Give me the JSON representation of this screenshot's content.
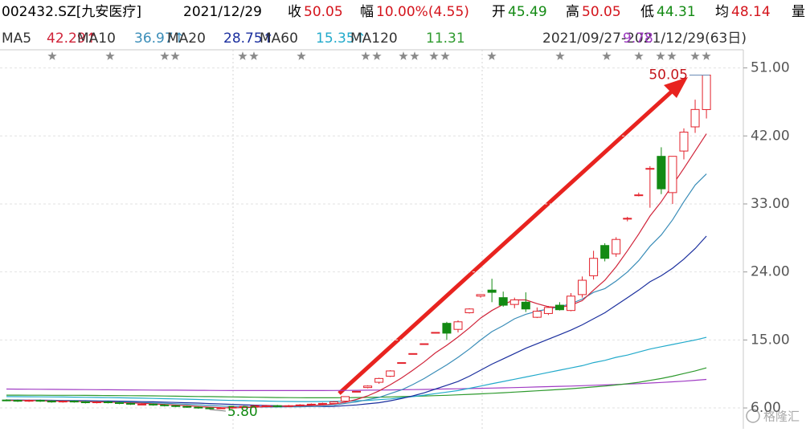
{
  "header": {
    "symbol": "002432.SZ[九安医疗]",
    "date": "2021/12/29",
    "fields": [
      {
        "label": "收",
        "value": "50.05",
        "color": "#d4141c"
      },
      {
        "label": "幅",
        "value": "10.00%(4.55)",
        "color": "#d4141c"
      },
      {
        "label": "开",
        "value": "45.49",
        "color": "#138a13"
      },
      {
        "label": "高",
        "value": "50.05",
        "color": "#d4141c"
      },
      {
        "label": "低",
        "value": "44.31",
        "color": "#138a13"
      },
      {
        "label": "均",
        "value": "48.14",
        "color": "#d4141c"
      }
    ],
    "volume_label": "量",
    "range": "2021/09/27-2021/12/29(63日)"
  },
  "watermark": "格隆汇",
  "chart_data": {
    "type": "candlestick",
    "categories": [
      null,
      null,
      null,
      null,
      null,
      null,
      null,
      null,
      null,
      null,
      null,
      null,
      null,
      null,
      null,
      null,
      null,
      null,
      null,
      null,
      null,
      null,
      null,
      null,
      null,
      null,
      null,
      null,
      null,
      null,
      null,
      null,
      null,
      null,
      null,
      null,
      null,
      null,
      null,
      null,
      null,
      null,
      null,
      null,
      null,
      null,
      null,
      null,
      null,
      null,
      null,
      null,
      null,
      null,
      null,
      null,
      null,
      null,
      null,
      null,
      null,
      null,
      null
    ],
    "open": [
      7.05,
      7.0,
      6.9,
      7.0,
      6.9,
      6.8,
      6.9,
      6.8,
      6.7,
      6.8,
      6.7,
      6.6,
      6.5,
      6.5,
      6.4,
      6.3,
      6.2,
      6.1,
      6.0,
      5.9,
      6.0,
      6.1,
      6.2,
      6.3,
      6.3,
      6.2,
      6.3,
      6.4,
      6.5,
      6.6,
      6.9,
      8.2,
      8.7,
      9.4,
      10.2,
      12.0,
      13.2,
      14.5,
      16.0,
      17.2,
      16.4,
      18.6,
      20.8,
      21.6,
      20.6,
      19.7,
      20.0,
      18.0,
      18.5,
      19.6,
      18.9,
      21.0,
      23.5,
      27.5,
      26.4,
      31.0,
      34.2,
      37.7,
      39.3,
      34.5,
      40.0,
      43.2,
      45.49
    ],
    "high": [
      7.15,
      7.1,
      7.1,
      7.1,
      7.0,
      7.0,
      7.0,
      6.9,
      6.9,
      6.9,
      6.8,
      6.7,
      6.6,
      6.6,
      6.5,
      6.4,
      6.3,
      6.2,
      6.1,
      6.1,
      6.2,
      6.3,
      6.4,
      6.4,
      6.4,
      6.4,
      6.5,
      6.6,
      6.7,
      6.9,
      7.5,
      8.2,
      9.0,
      10.0,
      11.0,
      12.0,
      13.2,
      14.5,
      16.0,
      17.4,
      17.6,
      19.2,
      21.0,
      23.1,
      21.4,
      20.6,
      21.3,
      19.3,
      19.5,
      20.0,
      21.2,
      23.4,
      26.8,
      27.8,
      28.6,
      31.3,
      34.5,
      38.0,
      40.5,
      39.3,
      43.0,
      46.8,
      50.05
    ],
    "low": [
      6.9,
      6.8,
      6.8,
      6.8,
      6.7,
      6.7,
      6.7,
      6.6,
      6.6,
      6.6,
      6.5,
      6.4,
      6.4,
      6.3,
      6.2,
      6.1,
      6.0,
      5.9,
      5.8,
      5.85,
      5.9,
      6.0,
      6.1,
      6.2,
      6.1,
      6.1,
      6.2,
      6.3,
      6.4,
      6.5,
      6.8,
      8.2,
      8.6,
      9.2,
      10.1,
      12.0,
      13.2,
      14.5,
      15.9,
      15.0,
      16.0,
      18.5,
      20.6,
      20.0,
      19.4,
      19.2,
      18.7,
      17.9,
      18.3,
      18.9,
      18.8,
      20.6,
      23.0,
      25.4,
      26.0,
      30.7,
      34.0,
      32.5,
      34.3,
      33.0,
      38.9,
      42.4,
      44.31
    ],
    "close": [
      7.0,
      6.9,
      7.0,
      6.9,
      6.8,
      6.9,
      6.8,
      6.7,
      6.8,
      6.7,
      6.6,
      6.5,
      6.5,
      6.4,
      6.3,
      6.2,
      6.1,
      6.0,
      5.9,
      6.0,
      6.1,
      6.2,
      6.3,
      6.3,
      6.2,
      6.3,
      6.4,
      6.5,
      6.6,
      6.8,
      7.5,
      8.2,
      8.9,
      9.9,
      10.9,
      12.0,
      13.2,
      14.5,
      16.0,
      15.9,
      17.4,
      19.1,
      21.0,
      21.3,
      19.6,
      20.3,
      19.1,
      18.8,
      19.3,
      19.0,
      20.8,
      22.9,
      25.8,
      25.8,
      28.3,
      31.1,
      34.2,
      37.7,
      35.0,
      39.3,
      42.5,
      45.5,
      50.05
    ],
    "up_color": "#e3212b",
    "down_color": "#138a13",
    "series": [
      {
        "name": "MA5",
        "legend_value": "42.29↑",
        "color": "#d0243a",
        "values": [
          7.0,
          7.0,
          7.0,
          6.95,
          6.92,
          6.9,
          6.88,
          6.82,
          6.8,
          6.78,
          6.72,
          6.66,
          6.62,
          6.54,
          6.46,
          6.38,
          6.3,
          6.2,
          6.1,
          6.04,
          6.02,
          6.04,
          6.1,
          6.18,
          6.22,
          6.26,
          6.3,
          6.34,
          6.4,
          6.52,
          6.76,
          7.12,
          7.6,
          8.26,
          9.08,
          9.98,
          11.0,
          12.1,
          13.3,
          14.3,
          15.4,
          16.6,
          17.9,
          18.9,
          19.7,
          20.3,
          20.3,
          19.8,
          19.4,
          19.3,
          19.6,
          20.2,
          21.6,
          22.9,
          24.7,
          26.8,
          29.0,
          31.4,
          33.3,
          35.5,
          37.7,
          40.0,
          42.29
        ]
      },
      {
        "name": "MA10",
        "legend_value": "36.97↑",
        "color": "#3a8db8",
        "values": [
          7.0,
          7.0,
          7.0,
          7.0,
          7.0,
          6.95,
          6.93,
          6.9,
          6.87,
          6.84,
          6.8,
          6.76,
          6.72,
          6.67,
          6.62,
          6.56,
          6.48,
          6.41,
          6.33,
          6.25,
          6.2,
          6.16,
          6.13,
          6.12,
          6.12,
          6.14,
          6.16,
          6.2,
          6.25,
          6.35,
          6.6,
          6.8,
          7.1,
          7.4,
          7.9,
          8.4,
          9.1,
          9.9,
          10.8,
          11.7,
          12.7,
          13.8,
          15.0,
          16.1,
          16.9,
          17.8,
          18.4,
          18.8,
          19.1,
          19.4,
          19.8,
          20.4,
          21.3,
          21.8,
          22.8,
          24.0,
          25.5,
          27.4,
          28.9,
          30.9,
          33.3,
          35.5,
          36.97
        ]
      },
      {
        "name": "MA20",
        "legend_value": "28.75↑",
        "color": "#1b2f9e",
        "values": [
          7.05,
          7.05,
          7.04,
          7.03,
          7.02,
          7.0,
          6.98,
          6.96,
          6.94,
          6.92,
          6.9,
          6.87,
          6.84,
          6.81,
          6.77,
          6.73,
          6.69,
          6.64,
          6.58,
          6.53,
          6.47,
          6.42,
          6.37,
          6.33,
          6.29,
          6.25,
          6.22,
          6.2,
          6.19,
          6.2,
          6.3,
          6.4,
          6.55,
          6.7,
          6.95,
          7.25,
          7.6,
          8.0,
          8.5,
          9.0,
          9.5,
          10.2,
          11.0,
          11.8,
          12.5,
          13.2,
          13.9,
          14.5,
          15.1,
          15.7,
          16.3,
          17.0,
          17.8,
          18.6,
          19.6,
          20.6,
          21.6,
          22.7,
          23.5,
          24.5,
          25.7,
          27.1,
          28.75
        ]
      },
      {
        "name": "MA60",
        "legend_value": "15.35↑",
        "color": "#22aacb",
        "values": [
          7.5,
          7.49,
          7.48,
          7.47,
          7.46,
          7.45,
          7.43,
          7.41,
          7.39,
          7.37,
          7.35,
          7.32,
          7.29,
          7.26,
          7.23,
          7.2,
          7.16,
          7.12,
          7.08,
          7.04,
          7.0,
          6.97,
          6.94,
          6.91,
          6.88,
          6.86,
          6.85,
          6.85,
          6.86,
          6.88,
          6.9,
          6.95,
          7.0,
          7.1,
          7.2,
          7.35,
          7.5,
          7.7,
          7.9,
          8.1,
          8.3,
          8.6,
          8.9,
          9.2,
          9.5,
          9.8,
          10.1,
          10.4,
          10.7,
          11.0,
          11.3,
          11.6,
          12.0,
          12.3,
          12.7,
          13.0,
          13.4,
          13.8,
          14.1,
          14.4,
          14.7,
          15.0,
          15.35
        ]
      },
      {
        "name": "MA120",
        "legend_value": "11.31",
        "color": "#2e9a2e",
        "values": [
          7.7,
          7.7,
          7.69,
          7.69,
          7.68,
          7.68,
          7.67,
          7.66,
          7.65,
          7.64,
          7.63,
          7.62,
          7.61,
          7.6,
          7.58,
          7.56,
          7.54,
          7.52,
          7.5,
          7.48,
          7.46,
          7.44,
          7.42,
          7.4,
          7.38,
          7.37,
          7.36,
          7.35,
          7.35,
          7.35,
          7.36,
          7.38,
          7.4,
          7.43,
          7.46,
          7.5,
          7.54,
          7.58,
          7.63,
          7.68,
          7.74,
          7.8,
          7.87,
          7.94,
          8.02,
          8.1,
          8.18,
          8.27,
          8.36,
          8.45,
          8.55,
          8.66,
          8.78,
          8.9,
          9.05,
          9.2,
          9.4,
          9.65,
          9.9,
          10.2,
          10.55,
          10.9,
          11.31
        ]
      },
      {
        "legend_value": "9.78",
        "color": "#a03cc4",
        "values": [
          8.5,
          8.49,
          8.48,
          8.47,
          8.46,
          8.45,
          8.44,
          8.43,
          8.42,
          8.41,
          8.4,
          8.39,
          8.38,
          8.37,
          8.36,
          8.35,
          8.34,
          8.33,
          8.32,
          8.31,
          8.3,
          8.3,
          8.3,
          8.3,
          8.3,
          8.3,
          8.3,
          8.3,
          8.3,
          8.31,
          8.32,
          8.33,
          8.35,
          8.37,
          8.39,
          8.41,
          8.43,
          8.45,
          8.48,
          8.51,
          8.54,
          8.57,
          8.6,
          8.63,
          8.66,
          8.7,
          8.74,
          8.78,
          8.82,
          8.86,
          8.9,
          8.95,
          9.0,
          9.05,
          9.1,
          9.16,
          9.22,
          9.3,
          9.38,
          9.46,
          9.55,
          9.66,
          9.78
        ]
      }
    ],
    "ylim": [
      4.2,
      53.4
    ],
    "yticks": [
      {
        "value": 6,
        "label": "6.00"
      },
      {
        "value": 15,
        "label": "15.00"
      },
      {
        "value": 24,
        "label": "24.00"
      },
      {
        "value": 33,
        "label": "33.00"
      },
      {
        "value": 42,
        "label": "42.00"
      },
      {
        "value": 51,
        "label": "51.00"
      }
    ],
    "grid": true,
    "max_label": "50.05",
    "min_label": "5.80"
  }
}
